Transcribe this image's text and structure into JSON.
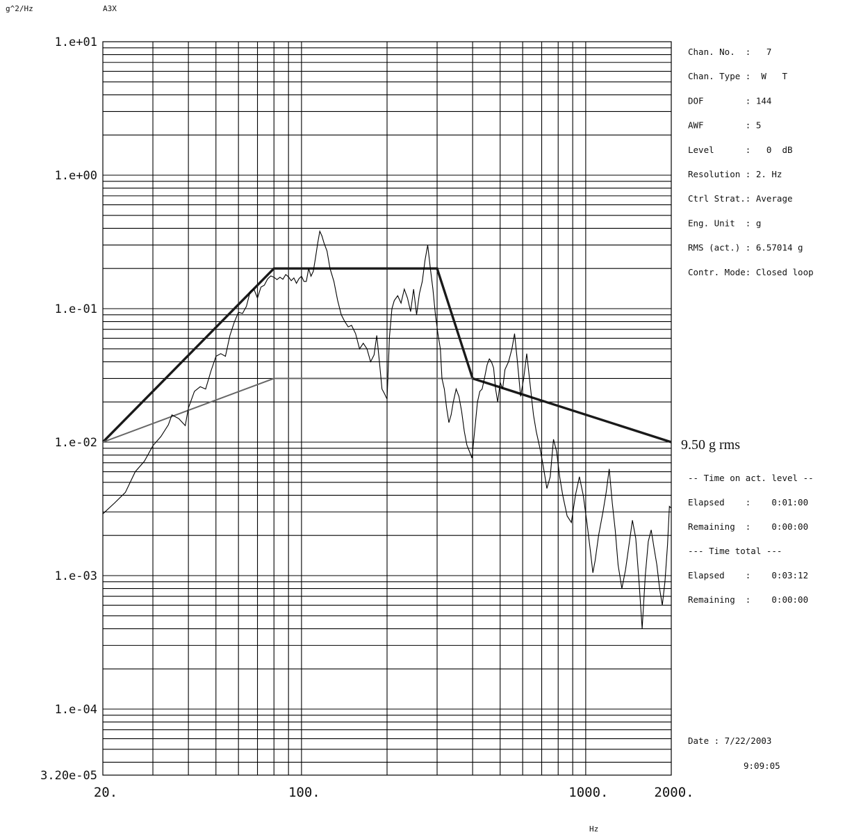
{
  "chart_data": {
    "type": "line",
    "x_scale": "log",
    "y_scale": "log",
    "xlim": [
      20,
      2000
    ],
    "ylim": [
      3.2e-05,
      10
    ],
    "grid": true,
    "ylabel": "g^2/Hz",
    "xlabel": "Hz",
    "channel_tag": "A3X",
    "y_tick_labels": [
      {
        "value": 10,
        "label": "1.e+01"
      },
      {
        "value": 1,
        "label": "1.e+00"
      },
      {
        "value": 0.1,
        "label": "1.e-01"
      },
      {
        "value": 0.01,
        "label": "1.e-02"
      },
      {
        "value": 0.001,
        "label": "1.e-03"
      },
      {
        "value": 0.0001,
        "label": "1.e-04"
      },
      {
        "value": 3.2e-05,
        "label": "3.20e-05"
      }
    ],
    "x_tick_labels": [
      {
        "value": 20,
        "label": "20."
      },
      {
        "value": 100,
        "label": "100."
      },
      {
        "value": 1000,
        "label": "1000."
      },
      {
        "value": 2000,
        "label": "2000."
      }
    ],
    "series": [
      {
        "role": "profile",
        "color": "#1a1a1a",
        "points": [
          [
            20,
            0.01
          ],
          [
            80,
            0.2
          ],
          [
            300,
            0.2
          ],
          [
            400,
            0.03
          ],
          [
            2000,
            0.01
          ]
        ]
      },
      {
        "role": "lower-profile",
        "color": "#666666",
        "points": [
          [
            20,
            0.01
          ],
          [
            80,
            0.03
          ],
          [
            400,
            0.03
          ]
        ]
      },
      {
        "role": "measured",
        "color": "#000000",
        "points": [
          [
            20,
            0.0029
          ],
          [
            22,
            0.0035
          ],
          [
            24,
            0.0042
          ],
          [
            26,
            0.006
          ],
          [
            28,
            0.0072
          ],
          [
            30,
            0.0094
          ],
          [
            32,
            0.011
          ],
          [
            34,
            0.0135
          ],
          [
            35,
            0.016
          ],
          [
            37,
            0.015
          ],
          [
            39,
            0.0133
          ],
          [
            40,
            0.018
          ],
          [
            42,
            0.024
          ],
          [
            44,
            0.026
          ],
          [
            46,
            0.025
          ],
          [
            48,
            0.034
          ],
          [
            50,
            0.044
          ],
          [
            52,
            0.046
          ],
          [
            54,
            0.044
          ],
          [
            56,
            0.063
          ],
          [
            58,
            0.079
          ],
          [
            60,
            0.094
          ],
          [
            62,
            0.092
          ],
          [
            64,
            0.104
          ],
          [
            66,
            0.135
          ],
          [
            68,
            0.14
          ],
          [
            70,
            0.12
          ],
          [
            72,
            0.145
          ],
          [
            74,
            0.15
          ],
          [
            76,
            0.167
          ],
          [
            78,
            0.176
          ],
          [
            80,
            0.172
          ],
          [
            82,
            0.165
          ],
          [
            84,
            0.172
          ],
          [
            86,
            0.166
          ],
          [
            88,
            0.18
          ],
          [
            90,
            0.173
          ],
          [
            92,
            0.162
          ],
          [
            94,
            0.17
          ],
          [
            96,
            0.155
          ],
          [
            98,
            0.168
          ],
          [
            100,
            0.175
          ],
          [
            102,
            0.16
          ],
          [
            104,
            0.16
          ],
          [
            106,
            0.2
          ],
          [
            108,
            0.175
          ],
          [
            110,
            0.19
          ],
          [
            112,
            0.24
          ],
          [
            114,
            0.31
          ],
          [
            116,
            0.38
          ],
          [
            118,
            0.35
          ],
          [
            120,
            0.31
          ],
          [
            123,
            0.27
          ],
          [
            126,
            0.2
          ],
          [
            130,
            0.16
          ],
          [
            134,
            0.115
          ],
          [
            138,
            0.09
          ],
          [
            142,
            0.08
          ],
          [
            146,
            0.073
          ],
          [
            150,
            0.075
          ],
          [
            155,
            0.065
          ],
          [
            160,
            0.05
          ],
          [
            165,
            0.055
          ],
          [
            170,
            0.05
          ],
          [
            175,
            0.04
          ],
          [
            180,
            0.045
          ],
          [
            184,
            0.063
          ],
          [
            188,
            0.04
          ],
          [
            192,
            0.025
          ],
          [
            196,
            0.023
          ],
          [
            200,
            0.021
          ],
          [
            204,
            0.062
          ],
          [
            208,
            0.1
          ],
          [
            212,
            0.115
          ],
          [
            218,
            0.125
          ],
          [
            224,
            0.11
          ],
          [
            230,
            0.14
          ],
          [
            236,
            0.12
          ],
          [
            242,
            0.095
          ],
          [
            248,
            0.14
          ],
          [
            254,
            0.09
          ],
          [
            260,
            0.13
          ],
          [
            266,
            0.16
          ],
          [
            272,
            0.23
          ],
          [
            278,
            0.3
          ],
          [
            284,
            0.2
          ],
          [
            290,
            0.14
          ],
          [
            296,
            0.09
          ],
          [
            302,
            0.065
          ],
          [
            308,
            0.05
          ],
          [
            312,
            0.03
          ],
          [
            318,
            0.025
          ],
          [
            324,
            0.018
          ],
          [
            330,
            0.014
          ],
          [
            336,
            0.016
          ],
          [
            342,
            0.02
          ],
          [
            350,
            0.025
          ],
          [
            358,
            0.022
          ],
          [
            366,
            0.017
          ],
          [
            374,
            0.012
          ],
          [
            382,
            0.0095
          ],
          [
            390,
            0.0085
          ],
          [
            398,
            0.0076
          ],
          [
            408,
            0.013
          ],
          [
            416,
            0.02
          ],
          [
            424,
            0.024
          ],
          [
            432,
            0.025
          ],
          [
            440,
            0.03
          ],
          [
            450,
            0.038
          ],
          [
            458,
            0.042
          ],
          [
            466,
            0.04
          ],
          [
            474,
            0.036
          ],
          [
            482,
            0.025
          ],
          [
            490,
            0.02
          ],
          [
            500,
            0.028
          ],
          [
            510,
            0.025
          ],
          [
            520,
            0.035
          ],
          [
            535,
            0.04
          ],
          [
            550,
            0.05
          ],
          [
            562,
            0.065
          ],
          [
            575,
            0.04
          ],
          [
            590,
            0.022
          ],
          [
            605,
            0.03
          ],
          [
            620,
            0.046
          ],
          [
            640,
            0.025
          ],
          [
            655,
            0.016
          ],
          [
            670,
            0.012
          ],
          [
            690,
            0.009
          ],
          [
            710,
            0.0065
          ],
          [
            730,
            0.0045
          ],
          [
            750,
            0.0055
          ],
          [
            770,
            0.0105
          ],
          [
            790,
            0.0085
          ],
          [
            810,
            0.0055
          ],
          [
            830,
            0.004
          ],
          [
            860,
            0.0028
          ],
          [
            890,
            0.0025
          ],
          [
            920,
            0.004
          ],
          [
            950,
            0.0055
          ],
          [
            980,
            0.004
          ],
          [
            1010,
            0.0025
          ],
          [
            1040,
            0.0015
          ],
          [
            1060,
            0.00105
          ],
          [
            1080,
            0.0013
          ],
          [
            1110,
            0.002
          ],
          [
            1150,
            0.003
          ],
          [
            1180,
            0.0042
          ],
          [
            1210,
            0.0063
          ],
          [
            1240,
            0.0035
          ],
          [
            1270,
            0.0022
          ],
          [
            1300,
            0.0012
          ],
          [
            1340,
            0.0008
          ],
          [
            1380,
            0.0011
          ],
          [
            1420,
            0.0017
          ],
          [
            1460,
            0.0026
          ],
          [
            1500,
            0.0019
          ],
          [
            1540,
            0.0009
          ],
          [
            1580,
            0.0004
          ],
          [
            1620,
            0.001
          ],
          [
            1660,
            0.0018
          ],
          [
            1700,
            0.0022
          ],
          [
            1740,
            0.0016
          ],
          [
            1780,
            0.0012
          ],
          [
            1820,
            0.0008
          ],
          [
            1860,
            0.0006
          ],
          [
            1900,
            0.0009
          ],
          [
            1940,
            0.0017
          ],
          [
            1970,
            0.0033
          ],
          [
            2000,
            0.0032
          ]
        ]
      }
    ],
    "annotation": "9.50 g rms"
  },
  "info_panel": [
    "Chan. No.  :   7",
    "Chan. Type :  W   T",
    "DOF        : 144",
    "AWF        : 5",
    "Level      :   0  dB",
    "Resolution : 2. Hz",
    "Ctrl Strat.: Average",
    "Eng. Unit  : g",
    "RMS (act.) : 6.57014 g",
    "Contr. Mode: Closed loop"
  ],
  "time_panel": [
    "-- Time on act. level --",
    "Elapsed    :    0:01:00",
    "Remaining  :    0:00:00",
    "--- Time total ---",
    "Elapsed    :    0:03:12",
    "Remaining  :    0:00:00"
  ],
  "date_label": "Date  :   7/22/2003",
  "time_label": "9:09:05"
}
